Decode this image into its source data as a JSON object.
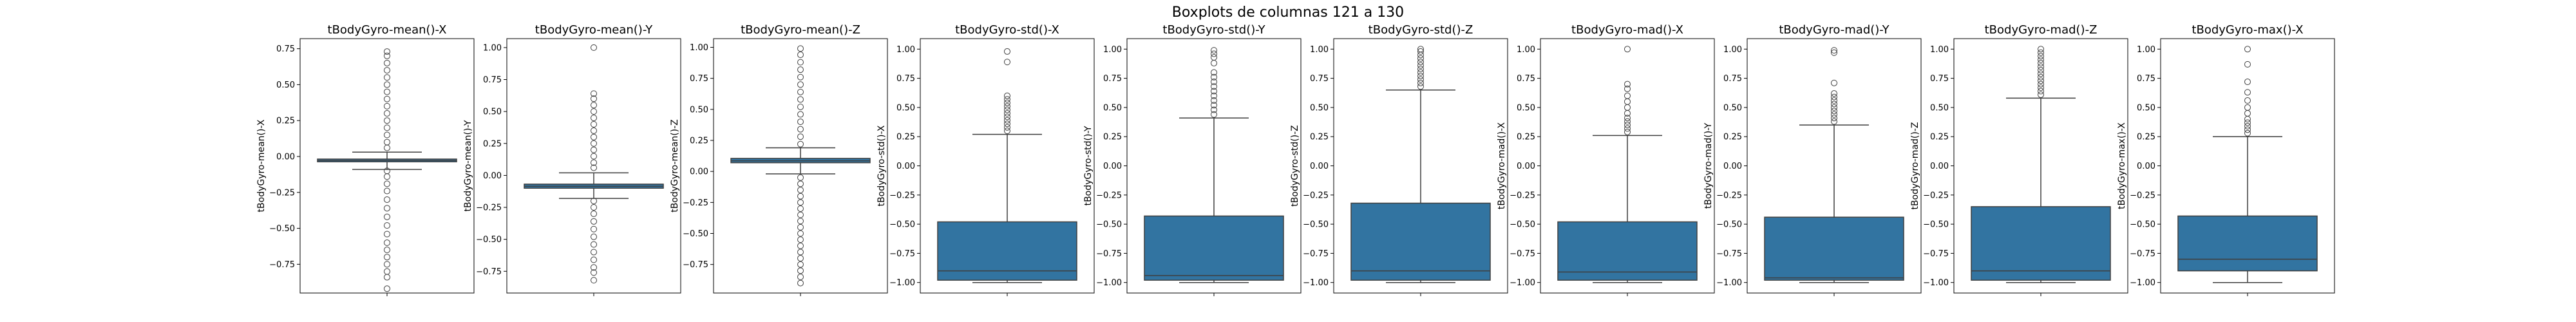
{
  "figure_title": "Boxplots de columnas 121 a 130",
  "box_color": "#3274a1",
  "chart_data": [
    {
      "type": "box",
      "title": "tBodyGyro-mean()-X",
      "ylabel": "tBodyGyro-mean()-X",
      "ylim": [
        -0.95,
        0.82
      ],
      "yticks": [
        -0.75,
        -0.5,
        -0.25,
        0.0,
        0.25,
        0.5,
        0.75
      ],
      "whisker_low": -0.09,
      "q1": -0.037,
      "median": -0.028,
      "q3": -0.018,
      "whisker_high": 0.03,
      "outliers_low": [
        -0.1,
        -0.14,
        -0.19,
        -0.24,
        -0.3,
        -0.36,
        -0.42,
        -0.48,
        -0.54,
        -0.6,
        -0.65,
        -0.7,
        -0.75,
        -0.8,
        -0.84,
        -0.92
      ],
      "outliers_high": [
        0.06,
        0.1,
        0.15,
        0.2,
        0.25,
        0.3,
        0.35,
        0.4,
        0.45,
        0.5,
        0.55,
        0.6,
        0.65,
        0.7,
        0.73
      ]
    },
    {
      "type": "box",
      "title": "tBodyGyro-mean()-Y",
      "ylabel": "tBodyGyro-mean()-Y",
      "ylim": [
        -0.92,
        1.07
      ],
      "yticks": [
        -0.75,
        -0.5,
        -0.25,
        0.0,
        0.25,
        0.5,
        0.75,
        1.0
      ],
      "whisker_low": -0.18,
      "q1": -0.1,
      "median": -0.085,
      "q3": -0.068,
      "whisker_high": 0.02,
      "outliers_low": [
        -0.2,
        -0.25,
        -0.3,
        -0.36,
        -0.42,
        -0.48,
        -0.54,
        -0.6,
        -0.66,
        -0.72,
        -0.76,
        -0.82
      ],
      "outliers_high": [
        0.06,
        0.1,
        0.15,
        0.2,
        0.25,
        0.3,
        0.35,
        0.4,
        0.45,
        0.5,
        0.55,
        0.6,
        0.64,
        1.0
      ]
    },
    {
      "type": "box",
      "title": "tBodyGyro-mean()-Z",
      "ylabel": "tBodyGyro-mean()-Z",
      "ylim": [
        -0.98,
        1.07
      ],
      "yticks": [
        -0.75,
        -0.5,
        -0.25,
        0.0,
        0.25,
        0.5,
        0.75,
        1.0
      ],
      "whisker_low": -0.02,
      "q1": 0.07,
      "median": 0.085,
      "q3": 0.105,
      "whisker_high": 0.19,
      "outliers_low": [
        -0.05,
        -0.1,
        -0.15,
        -0.2,
        -0.25,
        -0.3,
        -0.35,
        -0.4,
        -0.45,
        -0.5,
        -0.55,
        -0.6,
        -0.65,
        -0.7,
        -0.75,
        -0.8,
        -0.85,
        -0.9
      ],
      "outliers_high": [
        0.22,
        0.28,
        0.34,
        0.4,
        0.46,
        0.52,
        0.58,
        0.64,
        0.7,
        0.76,
        0.82,
        0.88,
        0.94,
        0.99
      ]
    },
    {
      "type": "box",
      "title": "tBodyGyro-std()-X",
      "ylabel": "tBodyGyro-std()-X",
      "ylim": [
        -1.09,
        1.09
      ],
      "yticks": [
        -1.0,
        -0.75,
        -0.5,
        -0.25,
        0.0,
        0.25,
        0.5,
        0.75,
        1.0
      ],
      "whisker_low": -1.0,
      "q1": -0.98,
      "median": -0.9,
      "q3": -0.48,
      "whisker_high": 0.27,
      "outliers_low": [],
      "outliers_high": [
        0.3,
        0.33,
        0.36,
        0.39,
        0.42,
        0.45,
        0.48,
        0.51,
        0.54,
        0.57,
        0.6,
        0.89,
        0.98
      ]
    },
    {
      "type": "box",
      "title": "tBodyGyro-std()-Y",
      "ylabel": "tBodyGyro-std()-Y",
      "ylim": [
        -1.09,
        1.09
      ],
      "yticks": [
        -1.0,
        -0.75,
        -0.5,
        -0.25,
        0.0,
        0.25,
        0.5,
        0.75,
        1.0
      ],
      "whisker_low": -1.0,
      "q1": -0.98,
      "median": -0.94,
      "q3": -0.43,
      "whisker_high": 0.41,
      "outliers_low": [],
      "outliers_high": [
        0.44,
        0.48,
        0.52,
        0.56,
        0.6,
        0.64,
        0.68,
        0.72,
        0.76,
        0.8,
        0.88,
        0.93,
        0.96,
        0.99
      ]
    },
    {
      "type": "box",
      "title": "tBodyGyro-std()-Z",
      "ylabel": "tBodyGyro-std()-Z",
      "ylim": [
        -1.09,
        1.09
      ],
      "yticks": [
        -1.0,
        -0.75,
        -0.5,
        -0.25,
        0.0,
        0.25,
        0.5,
        0.75,
        1.0
      ],
      "whisker_low": -1.0,
      "q1": -0.98,
      "median": -0.9,
      "q3": -0.32,
      "whisker_high": 0.65,
      "outliers_low": [],
      "outliers_high": [
        0.68,
        0.71,
        0.74,
        0.77,
        0.8,
        0.83,
        0.86,
        0.89,
        0.92,
        0.95,
        0.98,
        1.0
      ]
    },
    {
      "type": "box",
      "title": "tBodyGyro-mad()-X",
      "ylabel": "tBodyGyro-mad()-X",
      "ylim": [
        -1.09,
        1.09
      ],
      "yticks": [
        -1.0,
        -0.75,
        -0.5,
        -0.25,
        0.0,
        0.25,
        0.5,
        0.75,
        1.0
      ],
      "whisker_low": -1.0,
      "q1": -0.98,
      "median": -0.91,
      "q3": -0.48,
      "whisker_high": 0.26,
      "outliers_low": [],
      "outliers_high": [
        0.29,
        0.32,
        0.35,
        0.38,
        0.41,
        0.45,
        0.5,
        0.55,
        0.6,
        0.66,
        0.7,
        1.0
      ]
    },
    {
      "type": "box",
      "title": "tBodyGyro-mad()-Y",
      "ylabel": "tBodyGyro-mad()-Y",
      "ylim": [
        -1.09,
        1.09
      ],
      "yticks": [
        -1.0,
        -0.75,
        -0.5,
        -0.25,
        0.0,
        0.25,
        0.5,
        0.75,
        1.0
      ],
      "whisker_low": -1.0,
      "q1": -0.98,
      "median": -0.96,
      "q3": -0.44,
      "whisker_high": 0.35,
      "outliers_low": [],
      "outliers_high": [
        0.38,
        0.41,
        0.44,
        0.47,
        0.5,
        0.53,
        0.56,
        0.59,
        0.62,
        0.71,
        0.97,
        0.99
      ]
    },
    {
      "type": "box",
      "title": "tBodyGyro-mad()-Z",
      "ylabel": "tBodyGyro-mad()-Z",
      "ylim": [
        -1.09,
        1.09
      ],
      "yticks": [
        -1.0,
        -0.75,
        -0.5,
        -0.25,
        0.0,
        0.25,
        0.5,
        0.75,
        1.0
      ],
      "whisker_low": -1.0,
      "q1": -0.98,
      "median": -0.9,
      "q3": -0.35,
      "whisker_high": 0.58,
      "outliers_low": [],
      "outliers_high": [
        0.61,
        0.64,
        0.67,
        0.7,
        0.73,
        0.76,
        0.79,
        0.82,
        0.85,
        0.88,
        0.91,
        0.94,
        0.97,
        1.0
      ]
    },
    {
      "type": "box",
      "title": "tBodyGyro-max()-X",
      "ylabel": "tBodyGyro-max()-X",
      "ylim": [
        -1.09,
        1.09
      ],
      "yticks": [
        -1.0,
        -0.75,
        -0.5,
        -0.25,
        0.0,
        0.25,
        0.5,
        0.75,
        1.0
      ],
      "whisker_low": -1.0,
      "q1": -0.9,
      "median": -0.8,
      "q3": -0.43,
      "whisker_high": 0.25,
      "outliers_low": [],
      "outliers_high": [
        0.28,
        0.31,
        0.34,
        0.37,
        0.4,
        0.45,
        0.5,
        0.56,
        0.63,
        0.72,
        0.87,
        1.0
      ]
    }
  ]
}
